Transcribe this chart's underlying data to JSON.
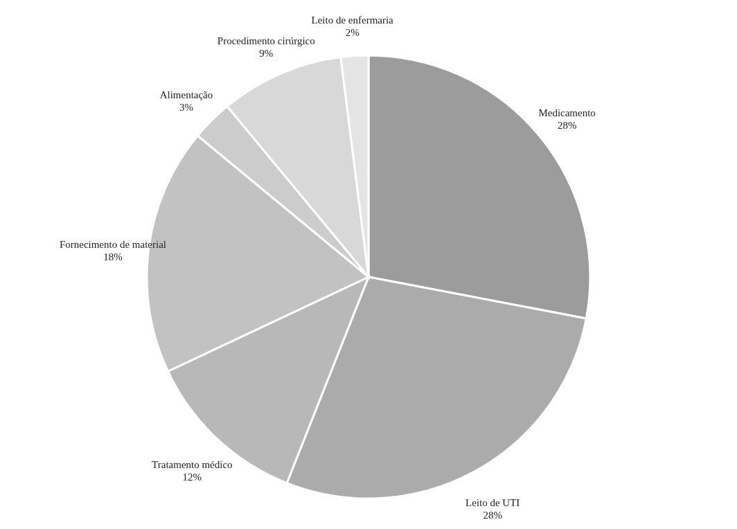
{
  "chart_data": {
    "type": "pie",
    "categories": [
      "Medicamento",
      "Leito de UTI",
      "Tratamento médico",
      "Fornecimento de material",
      "Alimentação",
      "Procedimento cirúrgico",
      "Leito de enfermaria"
    ],
    "values": [
      28,
      28,
      12,
      18,
      3,
      9,
      2
    ],
    "value_labels": [
      "28%",
      "28%",
      "12%",
      "18%",
      "3%",
      "9%",
      "2%"
    ],
    "colors": [
      "#9c9c9c",
      "#ababab",
      "#b8b8b8",
      "#c2c2c2",
      "#cccccc",
      "#d8d8d8",
      "#e4e4e4"
    ]
  }
}
